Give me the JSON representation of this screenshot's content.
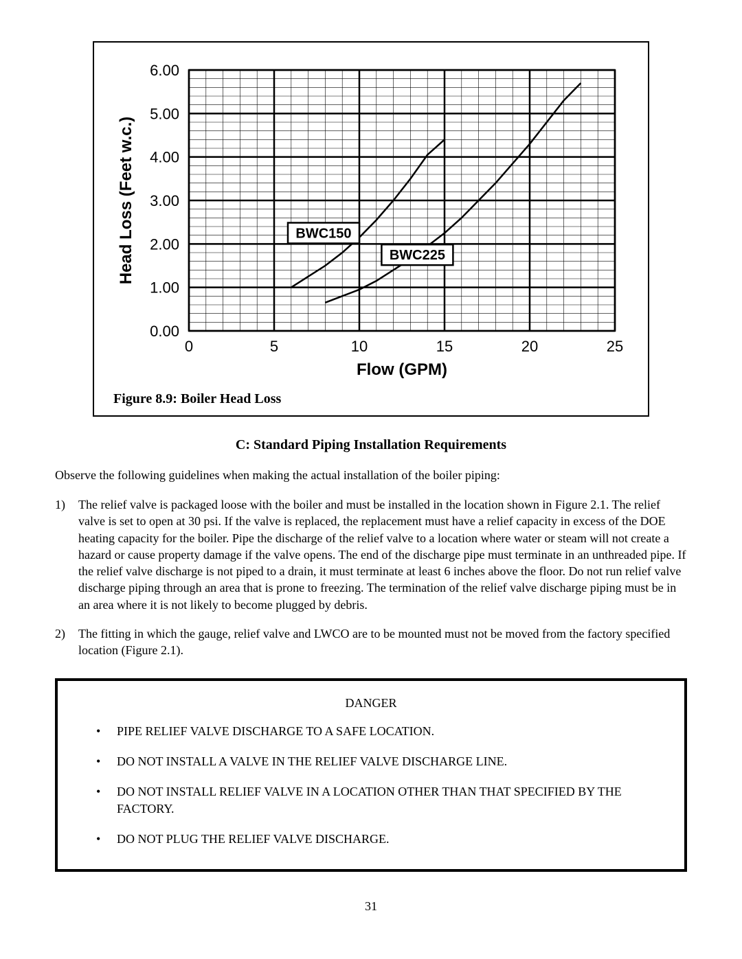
{
  "chart": {
    "type": "line",
    "caption": "Figure 8.9: Boiler Head Loss",
    "x_label": "Flow (GPM)",
    "y_label": "Head Loss (Feet w.c.)",
    "xlim": [
      0,
      25
    ],
    "ylim": [
      0,
      6
    ],
    "x_ticks": [
      0,
      5,
      10,
      15,
      20,
      25
    ],
    "y_ticks": [
      0,
      1,
      2,
      3,
      4,
      5,
      6
    ],
    "y_tick_labels": [
      "0.00",
      "1.00",
      "2.00",
      "3.00",
      "4.00",
      "5.00",
      "6.00"
    ],
    "minor_x_step": 1,
    "minor_y_step": 0.2,
    "background_color": "#ffffff",
    "minor_grid_color": "#000000",
    "major_grid_color": "#000000",
    "minor_grid_width": 0.6,
    "major_grid_width": 2.5,
    "curve_width": 2.5,
    "curve_color": "#000000",
    "series": [
      {
        "name": "BWC150",
        "label": "BWC150",
        "callout_x": 10,
        "callout_y": 2.25,
        "points": [
          [
            6,
            1.0
          ],
          [
            7,
            1.25
          ],
          [
            8,
            1.5
          ],
          [
            9,
            1.8
          ],
          [
            10,
            2.15
          ],
          [
            11,
            2.55
          ],
          [
            12,
            3.0
          ],
          [
            13,
            3.5
          ],
          [
            14,
            4.05
          ],
          [
            15,
            4.4
          ]
        ]
      },
      {
        "name": "BWC225",
        "label": "BWC225",
        "callout_x": 15.5,
        "callout_y": 1.75,
        "points": [
          [
            8,
            0.65
          ],
          [
            9,
            0.8
          ],
          [
            10,
            0.95
          ],
          [
            11,
            1.15
          ],
          [
            12,
            1.4
          ],
          [
            13,
            1.65
          ],
          [
            14,
            1.95
          ],
          [
            15,
            2.25
          ],
          [
            16,
            2.6
          ],
          [
            17,
            3.0
          ],
          [
            18,
            3.4
          ],
          [
            19,
            3.85
          ],
          [
            20,
            4.3
          ],
          [
            21,
            4.8
          ],
          [
            22,
            5.3
          ],
          [
            23,
            5.7
          ]
        ]
      }
    ]
  },
  "section_title": "C: Standard Piping Installation Requirements",
  "intro": "Observe the following guidelines when making the actual installation of the boiler piping:",
  "items": [
    {
      "num": "1)",
      "text": "The relief valve is packaged loose with the boiler and must be installed in the location shown in Figure 2.1.  The relief valve is set to open at 30 psi. If the valve is replaced, the replacement must have a relief capacity in excess of the DOE heating capacity for the boiler.  Pipe the discharge of the relief valve to a location where water or steam will not create a hazard or cause property damage if the valve opens. The end of the discharge pipe must terminate in an unthreaded pipe. If the relief valve discharge is not piped to a drain, it must terminate at least 6 inches above the floor. Do not run relief valve discharge piping through an area that is prone to freezing. The termination of the relief valve discharge piping must be in an area where it is not likely to become plugged by debris."
    },
    {
      "num": "2)",
      "text": "The fitting in which the gauge, relief valve and LWCO are to be mounted must not be moved from the factory specified location (Figure 2.1)."
    }
  ],
  "danger": {
    "title": "DANGER",
    "bullets": [
      "PIPE RELIEF VALVE DISCHARGE TO A SAFE LOCATION.",
      "DO NOT INSTALL A VALVE IN THE RELIEF VALVE DISCHARGE LINE.",
      "DO NOT INSTALL RELIEF VALVE IN A LOCATION OTHER THAN THAT SPECIFIED BY THE FACTORY.",
      "DO NOT PLUG THE RELIEF VALVE DISCHARGE."
    ]
  },
  "page_number": "31"
}
